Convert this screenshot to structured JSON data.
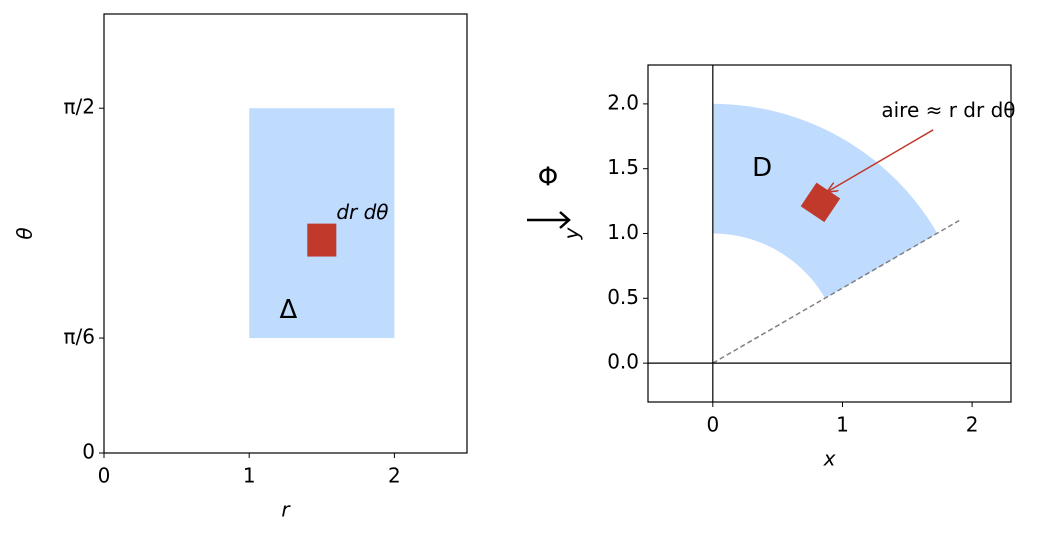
{
  "chart_data": [
    {
      "type": "region",
      "xlabel": "r",
      "ylabel": "θ",
      "xlim": [
        0,
        2.5
      ],
      "ylim": [
        0,
        2.0
      ],
      "xticks": [
        0,
        1,
        2
      ],
      "yticks": [
        0,
        {
          "value": 0.5236,
          "label": "π/6"
        },
        {
          "value": 1.5708,
          "label": "π/2"
        }
      ],
      "region": {
        "x": [
          1,
          2
        ],
        "y": [
          0.5236,
          1.5708
        ],
        "color": "#bfdbfe",
        "label": "Δ",
        "label_xy": [
          1.27,
          0.65
        ],
        "label_color": "#1f45b0"
      },
      "element": {
        "x": 1.5,
        "y": 0.97,
        "width": 0.2,
        "height": 0.15,
        "color": "#c0392b",
        "label": "dr dθ",
        "label_xy": [
          1.6,
          1.09
        ]
      }
    },
    {
      "type": "sector",
      "xlabel": "x",
      "ylabel": "y",
      "xlim": [
        -0.5,
        2.3
      ],
      "ylim": [
        -0.3,
        2.3
      ],
      "xticks": [
        0,
        1,
        2
      ],
      "yticks": [
        {
          "value": 0,
          "label": "0.0"
        },
        0.5,
        {
          "value": 1,
          "label": "1.0"
        },
        1.5,
        {
          "value": 2,
          "label": "2.0"
        }
      ],
      "zero_lines": true,
      "region": {
        "r": [
          1,
          2
        ],
        "theta": [
          0.5236,
          1.5708
        ],
        "color": "#bfdbfe",
        "label": "D",
        "label_xy": [
          0.38,
          1.5
        ],
        "label_color": "#1f45b0"
      },
      "element": {
        "x": 0.83,
        "y": 1.24,
        "size": 0.22,
        "color": "#c0392b",
        "annotation": "aire ≈ r dr dθ",
        "text_xy": [
          1.3,
          1.94
        ],
        "arrow_from": [
          1.7,
          1.8
        ],
        "arrow_to": [
          0.88,
          1.32
        ]
      },
      "ray": {
        "x": [
          0,
          1.9
        ],
        "y": [
          0,
          1.1
        ]
      }
    }
  ],
  "map_label": "Φ"
}
